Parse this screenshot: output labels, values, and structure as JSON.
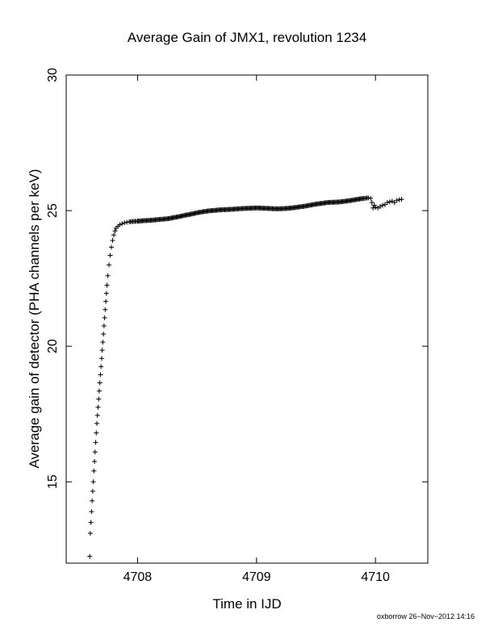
{
  "chart_data": {
    "type": "scatter",
    "title": "Average Gain of JMX1, revolution 1234",
    "xlabel": "Time in IJD",
    "ylabel": "Average gain of detector (PHA channels per keV)",
    "xlim": [
      4707.4,
      4710.44
    ],
    "ylim": [
      12.0,
      30.0
    ],
    "x_ticks": [
      4708,
      4709,
      4710
    ],
    "x_tick_labels": [
      "4708",
      "4709",
      "4710"
    ],
    "y_ticks": [
      15,
      20,
      25,
      30
    ],
    "y_tick_labels": [
      "15",
      "20",
      "25",
      "30"
    ],
    "marker": "+",
    "grid": false,
    "legend": "none",
    "color": "#000000",
    "series": [
      {
        "x": [
          4707.598,
          4707.603,
          4707.608,
          4707.613,
          4707.618,
          4707.623,
          4707.628,
          4707.633,
          4707.638,
          4707.643,
          4707.648,
          4707.653,
          4707.658,
          4707.663,
          4707.668,
          4707.673,
          4707.678,
          4707.683,
          4707.688,
          4707.693,
          4707.698,
          4707.703,
          4707.708,
          4707.713,
          4707.718,
          4707.723,
          4707.728,
          4707.733,
          4707.738,
          4707.743,
          4707.75,
          4707.76,
          4707.77,
          4707.78,
          4707.79,
          4707.8,
          4707.81,
          4707.82,
          4707.835,
          4707.85,
          4707.87,
          4707.89,
          4707.91,
          4707.93,
          4707.96,
          4708.0,
          4708.05,
          4708.1,
          4708.15,
          4708.2,
          4708.25,
          4708.3,
          4708.35,
          4708.4,
          4708.45,
          4708.5,
          4708.55,
          4708.6,
          4708.65,
          4708.7,
          4708.75,
          4708.8,
          4708.85,
          4708.9,
          4708.95,
          4709.0,
          4709.05,
          4709.1,
          4709.15,
          4709.2,
          4709.25,
          4709.3,
          4709.35,
          4709.4,
          4709.45,
          4709.5,
          4709.55,
          4709.6,
          4709.65,
          4709.7,
          4709.75,
          4709.8,
          4709.85,
          4709.9,
          4709.94,
          4709.96,
          4709.97,
          4709.98,
          4709.99,
          4710.0,
          4710.02,
          4710.04,
          4710.06,
          4710.08,
          4710.1,
          4710.12,
          4710.14,
          4710.16,
          4710.18,
          4710.2,
          4710.22
        ],
        "y": [
          12.25,
          13.1,
          13.5,
          13.9,
          14.3,
          14.65,
          15.0,
          15.4,
          15.75,
          16.1,
          16.45,
          16.8,
          17.15,
          17.45,
          17.75,
          18.05,
          18.35,
          18.65,
          18.95,
          19.25,
          19.55,
          19.85,
          20.15,
          20.45,
          20.75,
          21.05,
          21.35,
          21.65,
          21.95,
          22.25,
          22.6,
          23.0,
          23.35,
          23.65,
          23.9,
          24.1,
          24.25,
          24.35,
          24.42,
          24.48,
          24.52,
          24.55,
          24.57,
          24.59,
          24.6,
          24.61,
          24.63,
          24.64,
          24.66,
          24.68,
          24.7,
          24.74,
          24.78,
          24.83,
          24.87,
          24.92,
          24.96,
          24.99,
          25.01,
          25.03,
          25.04,
          25.05,
          25.07,
          25.08,
          25.09,
          25.1,
          25.09,
          25.08,
          25.07,
          25.07,
          25.08,
          25.1,
          25.13,
          25.16,
          25.2,
          25.24,
          25.27,
          25.3,
          25.31,
          25.32,
          25.35,
          25.38,
          25.42,
          25.45,
          25.47,
          25.45,
          25.3,
          25.1,
          25.2,
          25.12,
          25.1,
          25.15,
          25.2,
          25.22,
          25.3,
          25.32,
          25.35,
          25.3,
          25.38,
          25.4,
          25.42
        ]
      }
    ]
  },
  "footer": {
    "credit": "oxborrow 26−Nov−2012 14:16"
  }
}
